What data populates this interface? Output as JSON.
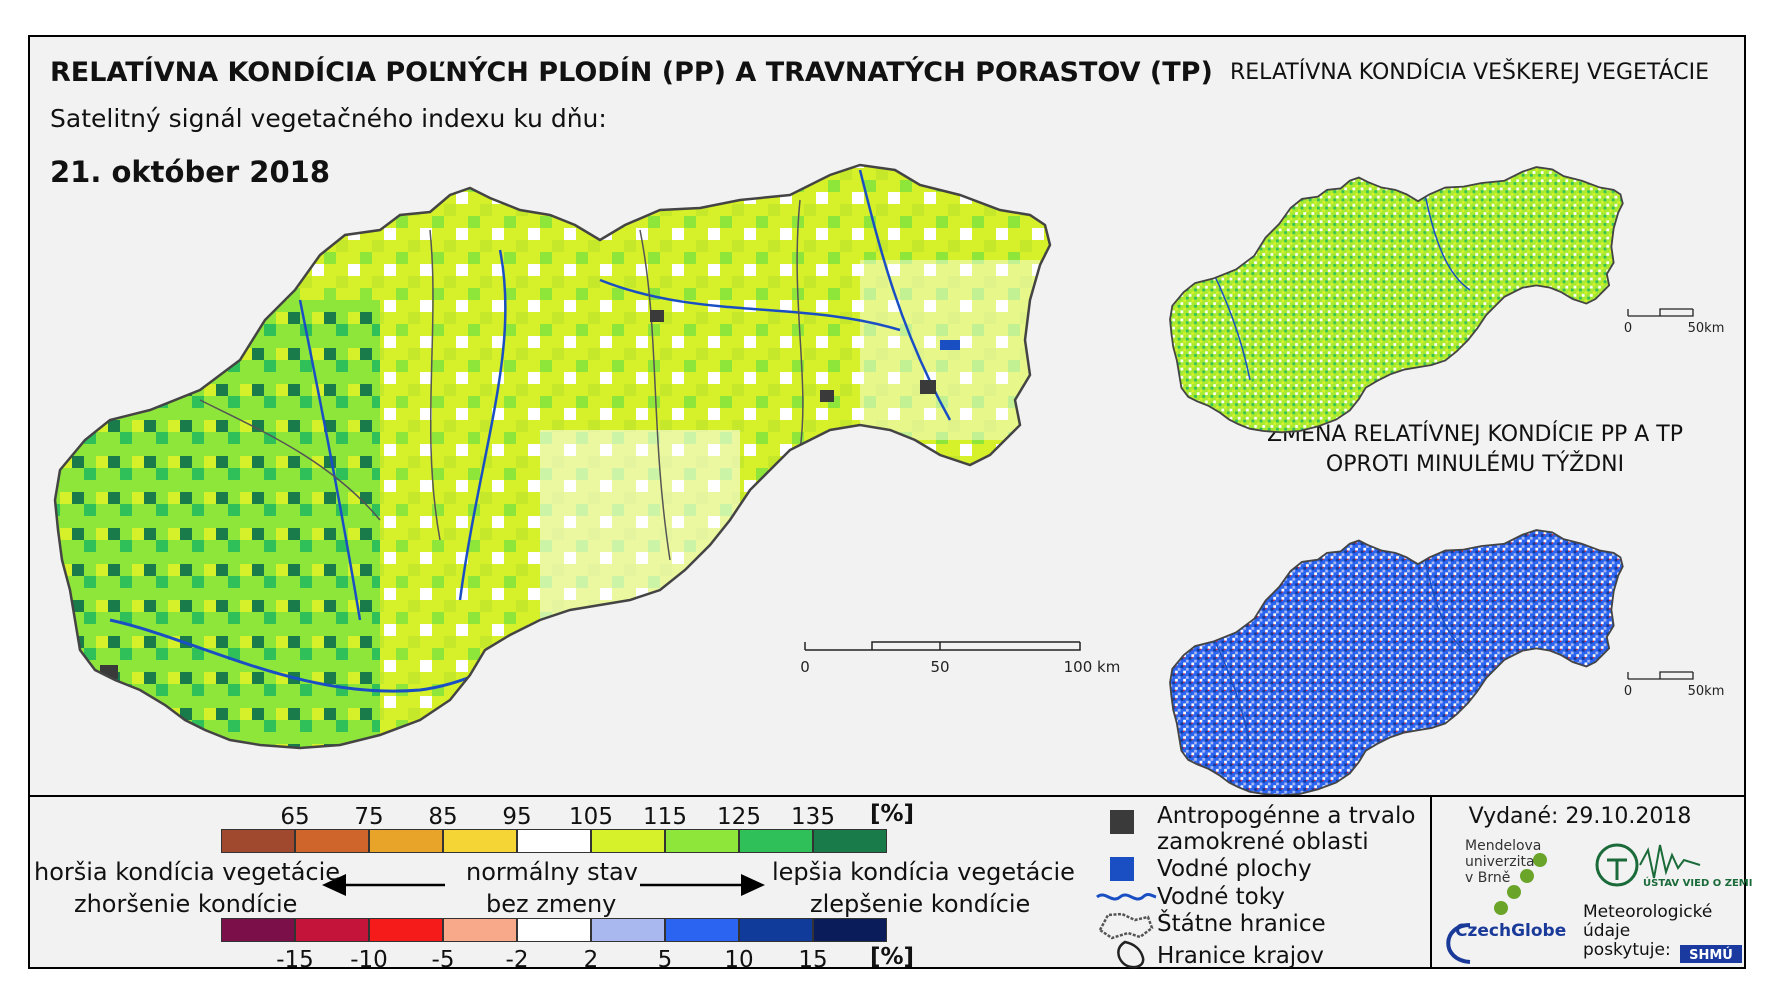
{
  "header": {
    "title": "RELATÍVNA KONDÍCIA POĽNÝCH PLODÍN (PP) A TRAVNATÝCH PORASTOV (TP)",
    "subtitle": "Satelitný signál vegetačného indexu ku dňu:",
    "date": "21. október 2018"
  },
  "panels": {
    "right_top_title": "RELATÍVNA KONDÍCIA VEŠKEREJ VEGETÁCIE",
    "change_title_line1": "ZMENA RELATÍVNEJ KONDÍCIE PP A TP",
    "change_title_line2": "OPROTI MINULÉMU TÝŽDNI"
  },
  "scalebars": {
    "main": {
      "labels": [
        "0",
        "50",
        "100 km"
      ]
    },
    "small_top": {
      "labels": [
        "0",
        "50km"
      ]
    },
    "small_bottom": {
      "labels": [
        "0",
        "50km"
      ]
    }
  },
  "legend": {
    "condition_scale": {
      "ticks": [
        "65",
        "75",
        "85",
        "95",
        "105",
        "115",
        "125",
        "135"
      ],
      "unit": "[%]",
      "colors": [
        "#a0492f",
        "#d0652b",
        "#e8a428",
        "#f5d535",
        "#ffffff",
        "#d6f02a",
        "#8ee63a",
        "#2fc05a",
        "#197a4a"
      ]
    },
    "change_scale": {
      "ticks": [
        "-15",
        "-10",
        "-5",
        "-2",
        "2",
        "5",
        "10",
        "15"
      ],
      "unit": "[%]",
      "colors": [
        "#7a0f4a",
        "#c4143a",
        "#f51b1b",
        "#f7a98a",
        "#ffffff",
        "#a9b8ef",
        "#2a64f0",
        "#103b9a",
        "#0b1c5a"
      ]
    },
    "worse_condition": "horšia kondícia vegetácie",
    "worse_change": "zhoršenie kondície",
    "normal_state": "normálny stav",
    "no_change": "bez zmeny",
    "better_condition": "lepšia kondícia vegetácie",
    "better_change": "zlepšenie kondície",
    "items": [
      {
        "label_line1": "Antropogénne a trvalo",
        "label_line2": "zamokrené oblasti",
        "color": "#3a3a3a"
      },
      {
        "label_line1": "Vodné plochy",
        "color": "#1a4fc4"
      },
      {
        "label_line1": "Vodné toky",
        "color": "#1a4fc4"
      },
      {
        "label_line1": "Štátne hranice",
        "color": "#555555"
      },
      {
        "label_line1": "Hranice krajov",
        "color": "#222222"
      }
    ]
  },
  "footer": {
    "issued": "Vydané: 29.10.2018",
    "mendel_line1": "Mendelova",
    "mendel_line2": "univerzita",
    "mendel_line3": "v Brně",
    "czechglobe": "CzechGlobe",
    "ustav": "ÚSTAV VIED O ZEMI",
    "meteo_line1": "Meteorologické",
    "meteo_line2": "údaje",
    "meteo_line3": "poskytuje:",
    "shmu": "SHMÚ"
  }
}
